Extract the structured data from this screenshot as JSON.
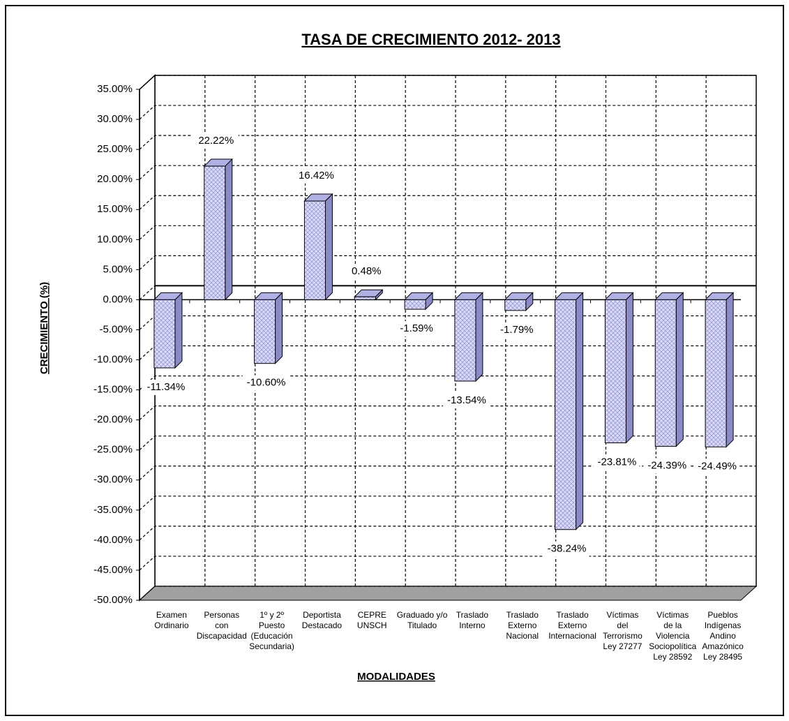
{
  "chart_data": {
    "type": "bar",
    "title": "TASA DE CRECIMIENTO 2012- 2013",
    "y_label": "CRECIMIENTO (%)",
    "x_label": "MODALIDADES",
    "categories": [
      [
        "Examen",
        "Ordinario"
      ],
      [
        "Personas",
        "con",
        "Discapacidad"
      ],
      [
        "1º y 2º",
        "Puesto",
        "(Educación",
        "Secundaria)"
      ],
      [
        "Deportista",
        "Destacado"
      ],
      [
        "CEPRE",
        "UNSCH"
      ],
      [
        "Graduado y/o",
        "Titulado"
      ],
      [
        "Traslado",
        "Interno"
      ],
      [
        "Traslado",
        "Externo",
        "Nacional"
      ],
      [
        "Traslado",
        "Externo",
        "Internacional"
      ],
      [
        "Víctimas",
        "del",
        "Terrorismo",
        "Ley 27277"
      ],
      [
        "Víctimas",
        "de la",
        "Violencia",
        "Sociopolítica",
        "Ley 28592"
      ],
      [
        "Pueblos",
        "Indígenas",
        "Andino",
        "Amazónico",
        "Ley 28495"
      ]
    ],
    "values": [
      -11.34,
      22.22,
      -10.6,
      16.42,
      0.48,
      -1.59,
      -13.54,
      -1.79,
      -38.24,
      -23.81,
      -24.39,
      -24.49
    ],
    "value_labels": [
      "-11.34%",
      "22.22%",
      "-10.60%",
      "16.42%",
      "0.48%",
      "-1.59%",
      "-13.54%",
      "-1.79%",
      "-38.24%",
      "-23.81%",
      "-24.39%",
      "-24.49%"
    ],
    "color": "#c4c4f0",
    "ylim": [
      -50,
      35
    ],
    "yticks": [
      {
        "value": -50,
        "label": "-50.00%"
      },
      {
        "value": -45,
        "label": "-45.00%"
      },
      {
        "value": -40,
        "label": "-40.00%"
      },
      {
        "value": -35,
        "label": "-35.00%"
      },
      {
        "value": -30,
        "label": "-30.00%"
      },
      {
        "value": -25,
        "label": "-25.00%"
      },
      {
        "value": -20,
        "label": "-20.00%"
      },
      {
        "value": -15,
        "label": "-15.00%"
      },
      {
        "value": -10,
        "label": "-10.00%"
      },
      {
        "value": -5,
        "label": "-5.00%"
      },
      {
        "value": 0,
        "label": "0.00%"
      },
      {
        "value": 5,
        "label": "5.00%"
      },
      {
        "value": 10,
        "label": "10.00%"
      },
      {
        "value": 15,
        "label": "15.00%"
      },
      {
        "value": 20,
        "label": "20.00%"
      },
      {
        "value": 25,
        "label": "25.00%"
      },
      {
        "value": 30,
        "label": "30.00%"
      },
      {
        "value": 35,
        "label": "35.00%"
      }
    ],
    "grid": true
  }
}
